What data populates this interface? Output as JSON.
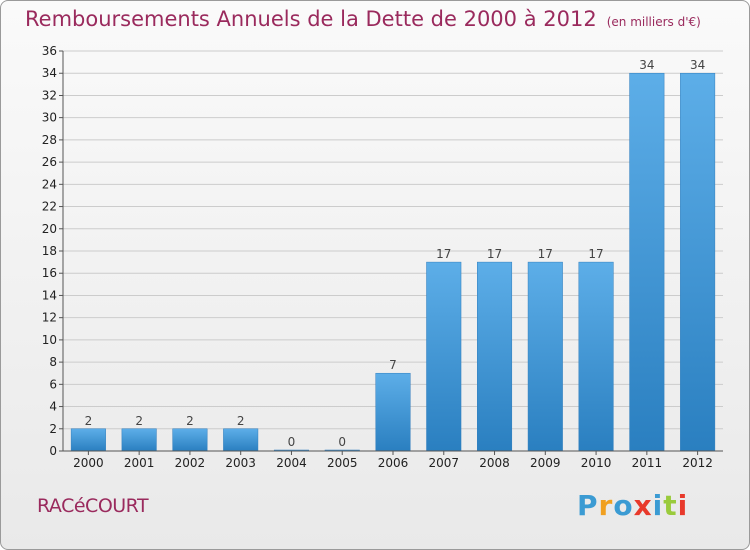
{
  "title": "Remboursements Annuels de la Dette de 2000 à 2012",
  "unit": "(en milliers d'€)",
  "commune": "RACéCOURT",
  "logo": {
    "text": "Proxiti",
    "letter_colors": [
      "#3b9bd3",
      "#f0a020",
      "#3b9bd3",
      "#e8392b",
      "#3b9bd3",
      "#9acb3c",
      "#e8392b"
    ]
  },
  "colors": {
    "title": "#9a2a5d",
    "bar_light": "#5daee8",
    "bar_dark": "#2a7fc0",
    "grid": "#cccccc"
  },
  "chart_data": {
    "type": "bar",
    "title": "Remboursements Annuels de la Dette de 2000 à 2012",
    "subtitle": "(en milliers d'€)",
    "categories": [
      "2000",
      "2001",
      "2002",
      "2003",
      "2004",
      "2005",
      "2006",
      "2007",
      "2008",
      "2009",
      "2010",
      "2011",
      "2012"
    ],
    "values": [
      2,
      2,
      2,
      2,
      0,
      0,
      7,
      17,
      17,
      17,
      17,
      34,
      34
    ],
    "ylim": [
      0,
      36
    ],
    "ytick_step": 2,
    "grid": true
  }
}
